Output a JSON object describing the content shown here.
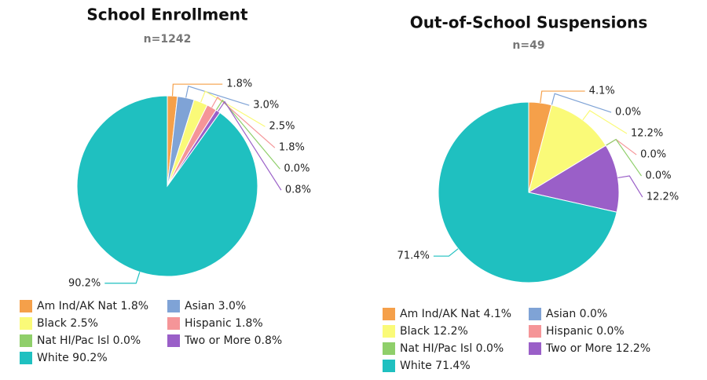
{
  "chart_data": [
    {
      "type": "pie",
      "title": "School Enrollment",
      "subtitle": "n=1242",
      "categories": [
        "Am Ind/AK Nat",
        "Asian",
        "Black",
        "Hispanic",
        "Nat HI/Pac Isl",
        "Two or More",
        "White"
      ],
      "values": [
        1.8,
        3.0,
        2.5,
        1.8,
        0.0,
        0.8,
        90.2
      ],
      "value_labels": [
        "1.8%",
        "3.0%",
        "2.5%",
        "1.8%",
        "0.0%",
        "0.8%",
        "90.2%"
      ],
      "colors": [
        "#f5a04a",
        "#7fa3d6",
        "#fafa78",
        "#f59598",
        "#8fcf6a",
        "#9a5fc8",
        "#1fc0c0"
      ]
    },
    {
      "type": "pie",
      "title": "Out-of-School Suspensions",
      "subtitle": "n=49",
      "categories": [
        "Am Ind/AK Nat",
        "Asian",
        "Black",
        "Hispanic",
        "Nat HI/Pac Isl",
        "Two or More",
        "White"
      ],
      "values": [
        4.1,
        0.0,
        12.2,
        0.0,
        0.0,
        12.2,
        71.4
      ],
      "value_labels": [
        "4.1%",
        "0.0%",
        "12.2%",
        "0.0%",
        "0.0%",
        "12.2%",
        "71.4%"
      ],
      "colors": [
        "#f5a04a",
        "#7fa3d6",
        "#fafa78",
        "#f59598",
        "#8fcf6a",
        "#9a5fc8",
        "#1fc0c0"
      ]
    }
  ]
}
